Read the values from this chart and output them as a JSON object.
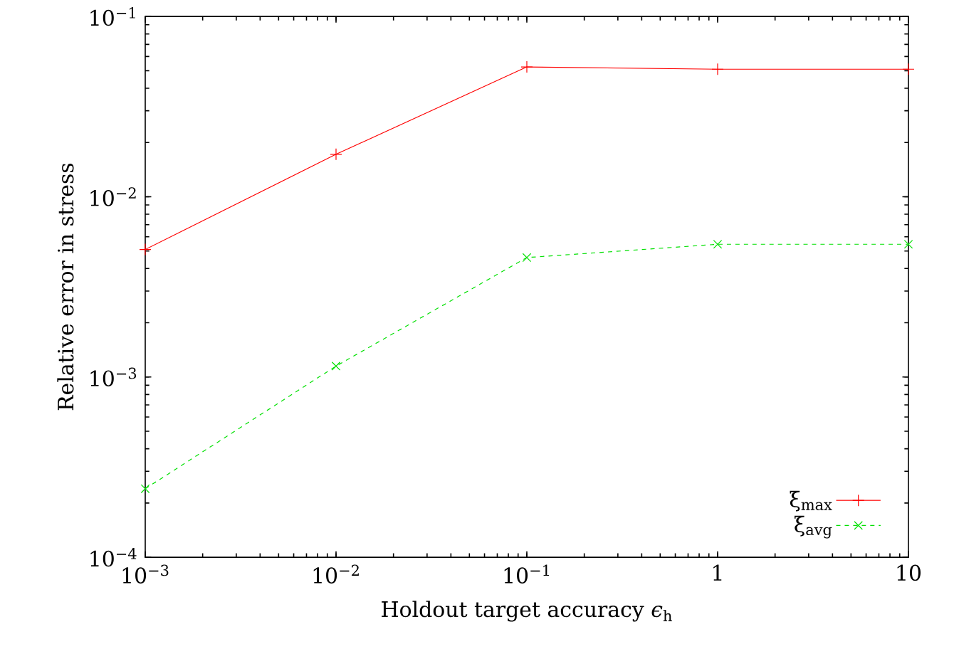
{
  "chart_data": {
    "type": "line",
    "xlabel": "Holdout target accuracy *ϵ*$_{h}$",
    "ylabel": "Relative error in stress",
    "log": "xy",
    "grid": false,
    "legend": "bottom right",
    "xlim": [
      0.001,
      10
    ],
    "ylim": [
      0.0001,
      0.1
    ],
    "xticks": [
      {
        "value": 0.001,
        "label": "10$^{−3}$"
      },
      {
        "value": 0.01,
        "label": "10$^{−2}$"
      },
      {
        "value": 0.1,
        "label": "10$^{−1}$"
      },
      1,
      10
    ],
    "yticks": [
      {
        "value": 0.0001,
        "label": "10$^{−4}$"
      },
      {
        "value": 0.001,
        "label": "10$^{−3}$"
      },
      {
        "value": 0.01,
        "label": "10$^{−2}$"
      },
      {
        "value": 0.1,
        "label": "10$^{−1}$"
      }
    ],
    "x": [
      0.001,
      0.01,
      0.1,
      1,
      10
    ],
    "series": [
      {
        "name": "ξ$_{max}$",
        "color": "#ff0000",
        "values": [
          0.0051,
          0.0172,
          0.0525,
          0.051,
          0.051
        ],
        "marker": "plus",
        "line_style": "solid"
      },
      {
        "name": "ξ$_{avg}$",
        "color": "#00e000",
        "values": [
          0.00024,
          0.00115,
          0.0046,
          0.00545,
          0.00545
        ],
        "marker": "cross",
        "line_style": "dashed"
      }
    ]
  }
}
